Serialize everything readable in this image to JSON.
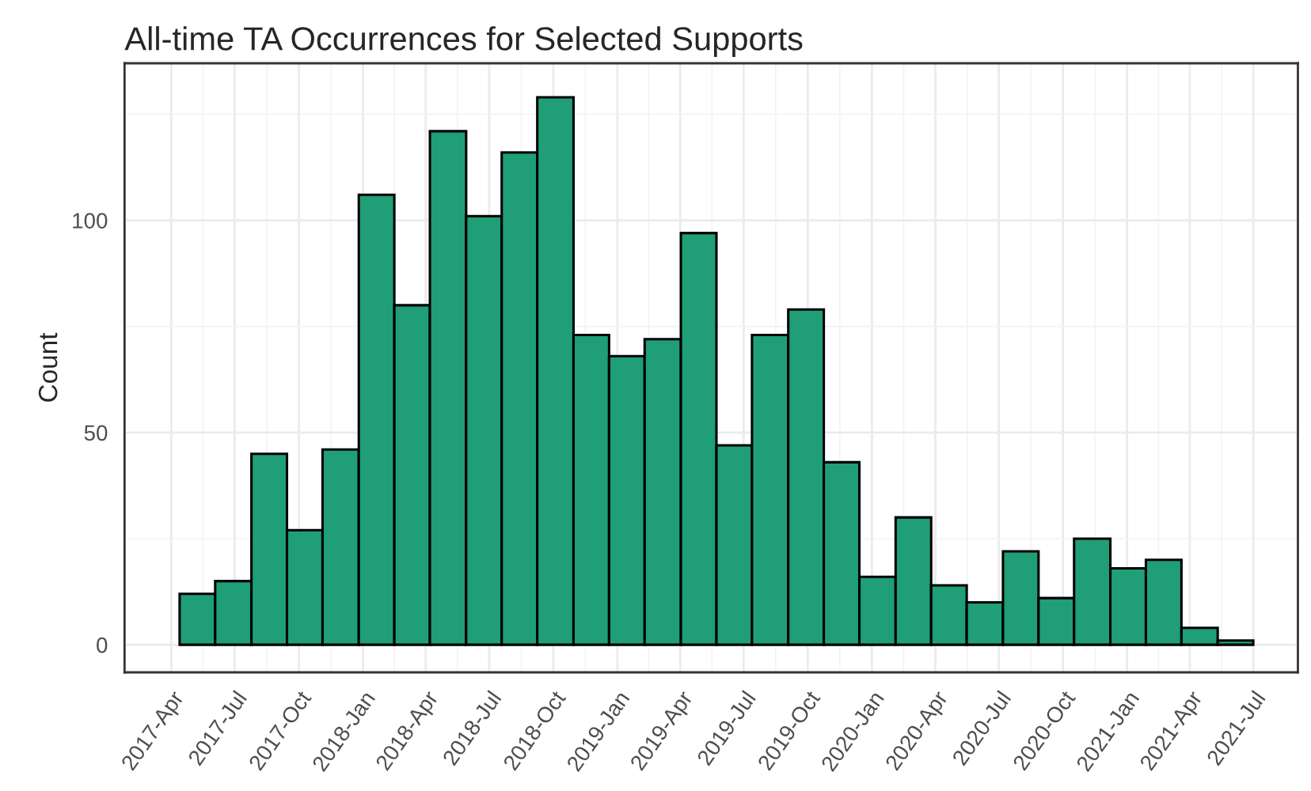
{
  "chart_data": {
    "type": "histogram",
    "title": "All-time TA Occurrences for Selected Supports",
    "ylabel": "Count",
    "bins": [
      "2017-04-13",
      "2017-06-03",
      "2017-07-25",
      "2017-09-14",
      "2017-11-04",
      "2017-12-26",
      "2018-02-15",
      "2018-04-07",
      "2018-05-29",
      "2018-07-19",
      "2018-09-08",
      "2018-10-30",
      "2018-12-20",
      "2019-02-09",
      "2019-04-02",
      "2019-05-23",
      "2019-07-13",
      "2019-09-03",
      "2019-10-24",
      "2019-12-14",
      "2020-02-04",
      "2020-03-26",
      "2020-05-16",
      "2020-07-07",
      "2020-08-27",
      "2020-10-17",
      "2020-12-08",
      "2021-01-28",
      "2021-03-20",
      "2021-05-11",
      "2021-07-01"
    ],
    "values": [
      12,
      15,
      45,
      27,
      46,
      106,
      80,
      121,
      101,
      116,
      129,
      73,
      68,
      72,
      97,
      47,
      73,
      79,
      43,
      16,
      30,
      14,
      10,
      22,
      11,
      25,
      18,
      20,
      4,
      1
    ],
    "color": "#1f9e77",
    "xlim": [
      "2017-01-24",
      "2021-09-03"
    ],
    "xticks": [
      {
        "value": "2017-04",
        "label": "2017-Apr"
      },
      {
        "value": "2017-07",
        "label": "2017-Jul"
      },
      {
        "value": "2017-10",
        "label": "2017-Oct"
      },
      {
        "value": "2018-01",
        "label": "2018-Jan"
      },
      {
        "value": "2018-04",
        "label": "2018-Apr"
      },
      {
        "value": "2018-07",
        "label": "2018-Jul"
      },
      {
        "value": "2018-10",
        "label": "2018-Oct"
      },
      {
        "value": "2019-01",
        "label": "2019-Jan"
      },
      {
        "value": "2019-04",
        "label": "2019-Apr"
      },
      {
        "value": "2019-07",
        "label": "2019-Jul"
      },
      {
        "value": "2019-10",
        "label": "2019-Oct"
      },
      {
        "value": "2020-01",
        "label": "2020-Jan"
      },
      {
        "value": "2020-04",
        "label": "2020-Apr"
      },
      {
        "value": "2020-07",
        "label": "2020-Jul"
      },
      {
        "value": "2020-10",
        "label": "2020-Oct"
      },
      {
        "value": "2021-01",
        "label": "2021-Jan"
      },
      {
        "value": "2021-04",
        "label": "2021-Apr"
      },
      {
        "value": "2021-07",
        "label": "2021-Jul"
      }
    ],
    "ylim": [
      -6.5,
      137
    ],
    "yticks": [
      0,
      50,
      100
    ],
    "grid": true
  }
}
